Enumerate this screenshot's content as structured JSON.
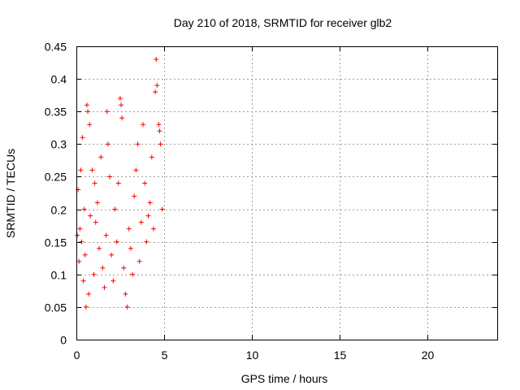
{
  "chart_data": {
    "type": "scatter",
    "title": "Day 210 of 2018, SRMTID for receiver glb2",
    "xlabel": "GPS time / hours",
    "ylabel": "SRMTID / TECUs",
    "xlim": [
      0,
      24
    ],
    "ylim": [
      0,
      0.45
    ],
    "xticks": [
      0,
      5,
      10,
      15,
      20
    ],
    "xtick_labels": [
      "0",
      "5",
      "10",
      "15",
      "20"
    ],
    "yticks": [
      0,
      0.05,
      0.1,
      0.15,
      0.2,
      0.25,
      0.3,
      0.35,
      0.4,
      0.45
    ],
    "ytick_labels": [
      "0",
      "0.05",
      "0.1",
      "0.15",
      "0.2",
      "0.25",
      "0.3",
      "0.35",
      "0.4",
      "0.45"
    ],
    "grid": true,
    "marker": "+",
    "color": "#ff0000",
    "series": [
      {
        "name": "SRMTID",
        "points": [
          [
            0.05,
            0.16
          ],
          [
            0.1,
            0.23
          ],
          [
            0.15,
            0.12
          ],
          [
            0.2,
            0.17
          ],
          [
            0.25,
            0.26
          ],
          [
            0.3,
            0.15
          ],
          [
            0.35,
            0.31
          ],
          [
            0.4,
            0.09
          ],
          [
            0.45,
            0.2
          ],
          [
            0.5,
            0.13
          ],
          [
            0.55,
            0.05
          ],
          [
            0.6,
            0.36
          ],
          [
            0.65,
            0.35
          ],
          [
            0.7,
            0.07
          ],
          [
            0.75,
            0.33
          ],
          [
            0.8,
            0.19
          ],
          [
            0.9,
            0.26
          ],
          [
            1.0,
            0.1
          ],
          [
            1.05,
            0.24
          ],
          [
            1.1,
            0.18
          ],
          [
            1.2,
            0.21
          ],
          [
            1.3,
            0.14
          ],
          [
            1.4,
            0.28
          ],
          [
            1.5,
            0.11
          ],
          [
            1.6,
            0.08
          ],
          [
            1.7,
            0.16
          ],
          [
            1.75,
            0.35
          ],
          [
            1.8,
            0.3
          ],
          [
            1.9,
            0.25
          ],
          [
            2.0,
            0.13
          ],
          [
            2.1,
            0.09
          ],
          [
            2.2,
            0.2
          ],
          [
            2.3,
            0.15
          ],
          [
            2.4,
            0.24
          ],
          [
            2.5,
            0.37
          ],
          [
            2.55,
            0.36
          ],
          [
            2.6,
            0.34
          ],
          [
            2.7,
            0.11
          ],
          [
            2.8,
            0.07
          ],
          [
            2.9,
            0.05
          ],
          [
            3.0,
            0.17
          ],
          [
            3.1,
            0.14
          ],
          [
            3.2,
            0.1
          ],
          [
            3.3,
            0.22
          ],
          [
            3.4,
            0.26
          ],
          [
            3.5,
            0.3
          ],
          [
            3.6,
            0.12
          ],
          [
            3.7,
            0.18
          ],
          [
            3.8,
            0.33
          ],
          [
            3.9,
            0.24
          ],
          [
            4.0,
            0.15
          ],
          [
            4.1,
            0.19
          ],
          [
            4.2,
            0.21
          ],
          [
            4.3,
            0.28
          ],
          [
            4.4,
            0.17
          ],
          [
            4.5,
            0.38
          ],
          [
            4.55,
            0.43
          ],
          [
            4.6,
            0.39
          ],
          [
            4.7,
            0.33
          ],
          [
            4.75,
            0.32
          ],
          [
            4.8,
            0.3
          ],
          [
            4.9,
            0.2
          ]
        ]
      }
    ]
  }
}
